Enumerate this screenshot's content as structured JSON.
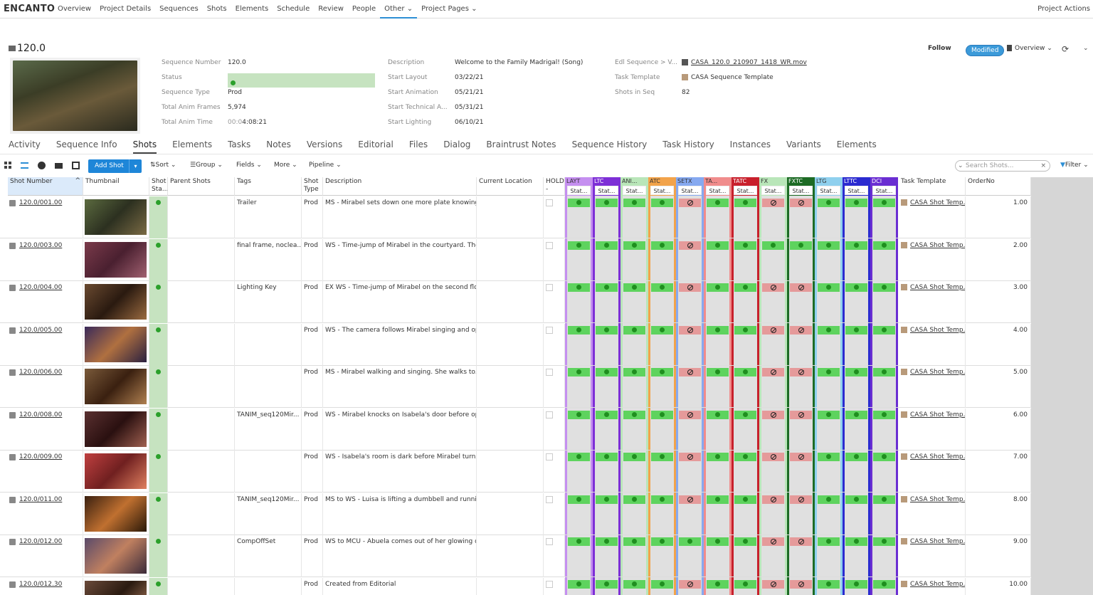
{
  "app": {
    "brand": "ENCANTO"
  },
  "topnav": {
    "items": [
      "Overview",
      "Project Details",
      "Sequences",
      "Shots",
      "Elements",
      "Schedule",
      "Review",
      "People",
      "Other",
      "Project Pages"
    ],
    "right": "Project Actions"
  },
  "header": {
    "title": "120.0",
    "fields": {
      "seq_number_label": "Sequence Number",
      "seq_number": "120.0",
      "status_label": "Status",
      "seq_type_label": "Sequence Type",
      "seq_type": "Prod",
      "anim_frames_label": "Total Anim Frames",
      "anim_frames": "5,974",
      "anim_time_label": "Total Anim Time",
      "anim_time_prefix": "00:0",
      "anim_time": "4:08:21",
      "description_label": "Description",
      "description": "Welcome to the Family Madrigal! (Song)",
      "start_layout_label": "Start Layout",
      "start_layout": "03/22/21",
      "start_animation_label": "Start Animation",
      "start_animation": "05/21/21",
      "start_tech_label": "Start Technical A...",
      "start_tech": "05/31/21",
      "start_lighting_label": "Start Lighting",
      "start_lighting": "06/10/21",
      "edl_label": "Edl Sequence > V...",
      "edl": "CASA_120.0_210907_1418_WR.mov",
      "task_template_label": "Task Template",
      "task_template": "CASA Sequence Template",
      "shots_in_seq_label": "Shots in Seq",
      "shots_in_seq": "82"
    },
    "follow": "Follow",
    "modified": "Modified",
    "overview": "Overview"
  },
  "tabs": [
    "Activity",
    "Sequence Info",
    "Shots",
    "Elements",
    "Tasks",
    "Notes",
    "Versions",
    "Editorial",
    "Files",
    "Dialog",
    "Braintrust Notes",
    "Sequence History",
    "Task History",
    "Instances",
    "Variants",
    "Elements"
  ],
  "toolbar": {
    "add": "Add Shot",
    "sort": "Sort",
    "group": "Group",
    "fields": "Fields",
    "more": "More",
    "pipeline": "Pipeline",
    "search_placeholder": "Search Shots...",
    "filter": "Filter"
  },
  "columns": {
    "shot_number": "Shot Number",
    "thumbnail": "Thumbnail",
    "shot_status": "Shot Sta...",
    "parent_shots": "Parent Shots",
    "tags": "Tags",
    "shot_type": "Shot Type",
    "description": "Description",
    "current_location": "Current Location",
    "hold": "HOLD -",
    "task_template": "Task Template",
    "order_no": "OrderNo"
  },
  "pipeline_steps": [
    {
      "name": "LAYT",
      "color": "#c58ff0",
      "status": "Stat..."
    },
    {
      "name": "LTC",
      "color": "#7d2fd6",
      "status": "Stat..."
    },
    {
      "name": "ANI...",
      "color": "#b9e6b9",
      "status": "Stat..."
    },
    {
      "name": "ATC",
      "color": "#f2a34a",
      "status": "Stat..."
    },
    {
      "name": "SETX",
      "color": "#86a9f0",
      "status": "Stat..."
    },
    {
      "name": "TA...",
      "color": "#f08c8c",
      "status": "Stat..."
    },
    {
      "name": "TATC",
      "color": "#c8202c",
      "status": "Stat..."
    },
    {
      "name": "FX",
      "color": "#b9e6b9",
      "status": "Stat..."
    },
    {
      "name": "FXTC",
      "color": "#1d6b25",
      "status": "Stat..."
    },
    {
      "name": "LTG",
      "color": "#8fd0ee",
      "status": "Stat..."
    },
    {
      "name": "LTTC",
      "color": "#2b2bd0",
      "status": "Stat..."
    },
    {
      "name": "DCI",
      "color": "#6a2ed2",
      "status": "Stat..."
    }
  ],
  "rows": [
    {
      "shot": "120.0/001.00",
      "tags": "Trailer",
      "type": "Prod",
      "desc": "MS - Mirabel sets down one more plate knowing...",
      "template": "CASA Shot Temp...",
      "order": "1.00",
      "pipe": "ggggrggrrggg"
    },
    {
      "shot": "120.0/003.00",
      "tags": "final frame, noclea...",
      "type": "Prod",
      "desc": "WS - Time-jump of Mirabel in the courtyard. The...",
      "template": "CASA Shot Temp...",
      "order": "2.00",
      "pipe": "ggggrggggggg"
    },
    {
      "shot": "120.0/004.00",
      "tags": "Lighting Key",
      "type": "Prod",
      "desc": "EX WS - Time-jump of Mirabel on the second flo...",
      "template": "CASA Shot Temp...",
      "order": "3.00",
      "pipe": "ggggrggrrggg"
    },
    {
      "shot": "120.0/005.00",
      "tags": "",
      "type": "Prod",
      "desc": "WS - The camera follows Mirabel singing and op...",
      "template": "CASA Shot Temp...",
      "order": "4.00",
      "pipe": "ggggrggrrggg"
    },
    {
      "shot": "120.0/006.00",
      "tags": "",
      "type": "Prod",
      "desc": "MS - Mirabel walking and singing. She walks to...",
      "template": "CASA Shot Temp...",
      "order": "5.00",
      "pipe": "ggggrggrrggg"
    },
    {
      "shot": "120.0/008.00",
      "tags": "TANIM_seq120Mir...",
      "type": "Prod",
      "desc": "WS - Mirabel knocks on Isabela's door before op...",
      "template": "CASA Shot Temp...",
      "order": "6.00",
      "pipe": "ggggrggrrggg"
    },
    {
      "shot": "120.0/009.00",
      "tags": "",
      "type": "Prod",
      "desc": "WS - Isabela's room is dark before Mirabel turns...",
      "template": "CASA Shot Temp...",
      "order": "7.00",
      "pipe": "ggggrggrrggg"
    },
    {
      "shot": "120.0/011.00",
      "tags": "TANIM_seq120Mir...",
      "type": "Prod",
      "desc": "MS to WS - Luisa is lifting a dumbbell and runni...",
      "template": "CASA Shot Temp...",
      "order": "8.00",
      "pipe": "ggggrggrrggg"
    },
    {
      "shot": "120.0/012.00",
      "tags": "CompOffSet",
      "type": "Prod",
      "desc": "WS to MCU - Abuela comes out of her glowing d...",
      "template": "CASA Shot Temp...",
      "order": "9.00",
      "pipe": "gggggggrrggg"
    },
    {
      "shot": "120.0/012.30",
      "tags": "",
      "type": "Prod",
      "desc": "Created from Editorial",
      "template": "CASA Shot Temp...",
      "order": "10.00",
      "pipe": "ggggrggrrggg"
    }
  ],
  "colors": {
    "accent": "#1e86d8",
    "status_green": "#c6e3c0",
    "pipe_green": "#5ed35e",
    "pipe_red": "#e59a9a"
  }
}
